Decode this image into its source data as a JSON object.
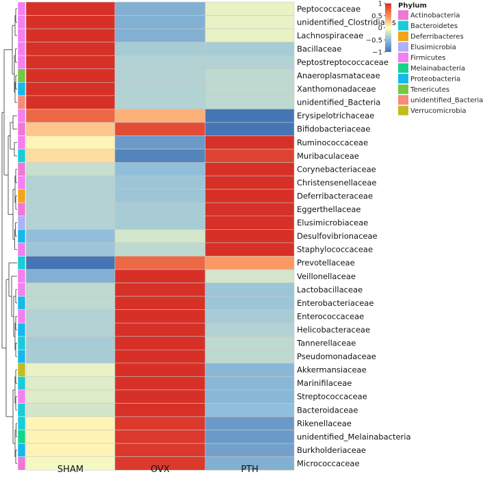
{
  "chart_data": {
    "type": "heatmap",
    "columns": [
      "SHAM",
      "OVX",
      "PTH"
    ],
    "rows": [
      {
        "name": "Peptococcaceae",
        "phylum": "Firmicutes",
        "values": [
          1.0,
          -0.6,
          -0.1
        ]
      },
      {
        "name": "unidentified_Clostridiales",
        "phylum": "Firmicutes",
        "values": [
          1.0,
          -0.6,
          -0.1
        ]
      },
      {
        "name": "Lachnospiraceae",
        "phylum": "Firmicutes",
        "values": [
          1.0,
          -0.6,
          -0.1
        ]
      },
      {
        "name": "Bacillaceae",
        "phylum": "Firmicutes",
        "values": [
          1.0,
          -0.4,
          -0.4
        ]
      },
      {
        "name": "Peptostreptococcaceae",
        "phylum": "Firmicutes",
        "values": [
          1.0,
          -0.35,
          -0.35
        ]
      },
      {
        "name": "Anaeroplasmataceae",
        "phylum": "Tenericutes",
        "values": [
          1.0,
          -0.35,
          -0.3
        ]
      },
      {
        "name": "Xanthomonadaceae",
        "phylum": "Proteobacteria",
        "values": [
          1.0,
          -0.35,
          -0.3
        ]
      },
      {
        "name": "unidentified_Bacteria",
        "phylum": "unidentified_Bacteria",
        "values": [
          1.0,
          -0.35,
          -0.3
        ]
      },
      {
        "name": "Erysipelotrichaceae",
        "phylum": "Firmicutes",
        "values": [
          0.7,
          0.35,
          -1.0
        ]
      },
      {
        "name": "Bifidobacteriaceae",
        "phylum": "Actinobacteria",
        "values": [
          0.25,
          0.85,
          -1.0
        ]
      },
      {
        "name": "Ruminococcaceae",
        "phylum": "Firmicutes",
        "values": [
          0.05,
          -0.75,
          1.0
        ]
      },
      {
        "name": "Muribaculaceae",
        "phylum": "Bacteroidetes",
        "values": [
          0.15,
          -0.9,
          0.9
        ]
      },
      {
        "name": "Corynebacteriaceae",
        "phylum": "Actinobacteria",
        "values": [
          -0.25,
          -0.5,
          1.0
        ]
      },
      {
        "name": "Christensenellaceae",
        "phylum": "Firmicutes",
        "values": [
          -0.35,
          -0.45,
          1.0
        ]
      },
      {
        "name": "Deferribacteraceae",
        "phylum": "Deferribacteres",
        "values": [
          -0.35,
          -0.45,
          1.0
        ]
      },
      {
        "name": "Eggerthellaceae",
        "phylum": "Actinobacteria",
        "values": [
          -0.35,
          -0.4,
          1.0
        ]
      },
      {
        "name": "Elusimicrobiaceae",
        "phylum": "Elusimicrobia",
        "values": [
          -0.35,
          -0.4,
          1.0
        ]
      },
      {
        "name": "Desulfovibrionaceae",
        "phylum": "Proteobacteria",
        "values": [
          -0.5,
          -0.2,
          1.0
        ]
      },
      {
        "name": "Staphylococcaceae",
        "phylum": "Firmicutes",
        "values": [
          -0.45,
          -0.3,
          1.0
        ]
      },
      {
        "name": "Prevotellaceae",
        "phylum": "Bacteroidetes",
        "values": [
          -1.0,
          0.7,
          0.45
        ]
      },
      {
        "name": "Veillonellaceae",
        "phylum": "Firmicutes",
        "values": [
          -0.6,
          1.0,
          -0.2
        ]
      },
      {
        "name": "Lactobacillaceae",
        "phylum": "Firmicutes",
        "values": [
          -0.3,
          1.0,
          -0.45
        ]
      },
      {
        "name": "Enterobacteriaceae",
        "phylum": "Proteobacteria",
        "values": [
          -0.3,
          1.0,
          -0.45
        ]
      },
      {
        "name": "Enterococcaceae",
        "phylum": "Firmicutes",
        "values": [
          -0.35,
          1.0,
          -0.4
        ]
      },
      {
        "name": "Helicobacteraceae",
        "phylum": "Proteobacteria",
        "values": [
          -0.35,
          1.0,
          -0.35
        ]
      },
      {
        "name": "Tannerellaceae",
        "phylum": "Bacteroidetes",
        "values": [
          -0.4,
          1.0,
          -0.3
        ]
      },
      {
        "name": "Pseudomonadaceae",
        "phylum": "Proteobacteria",
        "values": [
          -0.4,
          1.0,
          -0.3
        ]
      },
      {
        "name": "Akkermansiaceae",
        "phylum": "Verrucomicrobia",
        "values": [
          -0.1,
          1.0,
          -0.55
        ]
      },
      {
        "name": "Marinifilaceae",
        "phylum": "Bacteroidetes",
        "values": [
          -0.15,
          1.0,
          -0.55
        ]
      },
      {
        "name": "Streptococcaceae",
        "phylum": "Firmicutes",
        "values": [
          -0.15,
          1.0,
          -0.55
        ]
      },
      {
        "name": "Bacteroidaceae",
        "phylum": "Bacteroidetes",
        "values": [
          -0.2,
          1.0,
          -0.5
        ]
      },
      {
        "name": "Rikenellaceae",
        "phylum": "Bacteroidetes",
        "values": [
          0.05,
          0.95,
          -0.75
        ]
      },
      {
        "name": "unidentified_Melainabacteria",
        "phylum": "Melainabacteria",
        "values": [
          0.05,
          0.95,
          -0.75
        ]
      },
      {
        "name": "Burkholderiaceae",
        "phylum": "Proteobacteria",
        "values": [
          0.05,
          0.95,
          -0.7
        ]
      },
      {
        "name": "Micrococcaceae",
        "phylum": "Actinobacteria",
        "values": [
          -0.05,
          0.95,
          -0.6
        ]
      }
    ],
    "color_scale": {
      "range": [
        -1,
        1
      ],
      "stops": [
        {
          "value": -1,
          "color": "#4575b4"
        },
        {
          "value": -0.5,
          "color": "#91bfdb"
        },
        {
          "value": 0,
          "color": "#ffffbf"
        },
        {
          "value": 0.5,
          "color": "#fc8d59"
        },
        {
          "value": 1,
          "color": "#d73027"
        }
      ],
      "ticks": [
        "1",
        "0.5",
        "0",
        "−0.5",
        "−1"
      ],
      "tick_values": [
        1,
        0.5,
        0,
        -0.5,
        -1
      ]
    },
    "legend": {
      "title": "Phylum",
      "items": [
        {
          "label": "Actinobacteria",
          "color": "#ef78d6"
        },
        {
          "label": "Bacteroidetes",
          "color": "#19ccd7"
        },
        {
          "label": "Deferribacteres",
          "color": "#f2a51a"
        },
        {
          "label": "Elusimicrobia",
          "color": "#aeb1f5"
        },
        {
          "label": "Firmicutes",
          "color": "#f47ff0"
        },
        {
          "label": "Melainabacteria",
          "color": "#12d58b"
        },
        {
          "label": "Proteobacteria",
          "color": "#18b8ea"
        },
        {
          "label": "Tenericutes",
          "color": "#74c843"
        },
        {
          "label": "unidentified_Bacteria",
          "color": "#f58a7e"
        },
        {
          "label": "Verrucomicrobia",
          "color": "#c2bb22"
        }
      ]
    },
    "dendrogram_position": "left"
  }
}
